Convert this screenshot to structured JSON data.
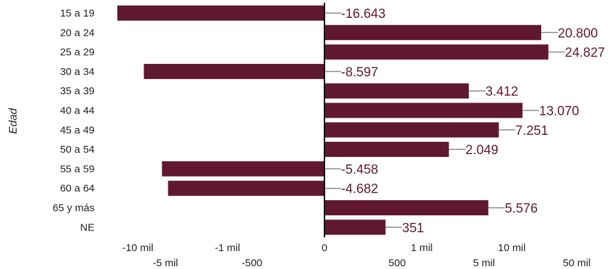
{
  "chart_data": {
    "type": "bar",
    "orientation": "horizontal",
    "ylabel": "Edad",
    "scale": "symlog",
    "categories": [
      "15 a 19",
      "20 a 24",
      "25 a 29",
      "30 a 34",
      "35 a 39",
      "40 a 44",
      "45 a 49",
      "50 a 54",
      "55 a 59",
      "60 a 64",
      "65 y más",
      "NE"
    ],
    "values": [
      -16643,
      20800,
      24827,
      -8597,
      3412,
      13070,
      7251,
      2049,
      -5458,
      -4682,
      5576,
      351
    ],
    "value_labels": [
      "-16.643",
      "20.800",
      "24.827",
      "-8.597",
      "3.412",
      "13.070",
      "7.251",
      "2.049",
      "-5.458",
      "-4.682",
      "5.576",
      "351"
    ],
    "xticks": [
      {
        "value": -10000,
        "label": "-10 mil"
      },
      {
        "value": -5000,
        "label": "-5 mil"
      },
      {
        "value": -1000,
        "label": "-1 mil"
      },
      {
        "value": -500,
        "label": "-500"
      },
      {
        "value": 0,
        "label": "0"
      },
      {
        "value": 500,
        "label": "500"
      },
      {
        "value": 1000,
        "label": "1 mil"
      },
      {
        "value": 5000,
        "label": "5 mil"
      },
      {
        "value": 10000,
        "label": "10 mil"
      },
      {
        "value": 50000,
        "label": "50 mil"
      }
    ],
    "grid": false,
    "legend": "none",
    "colors": {
      "bar": "#5f1830",
      "label": "#5f1830",
      "leader": "#888888",
      "axis": "#000000"
    }
  }
}
